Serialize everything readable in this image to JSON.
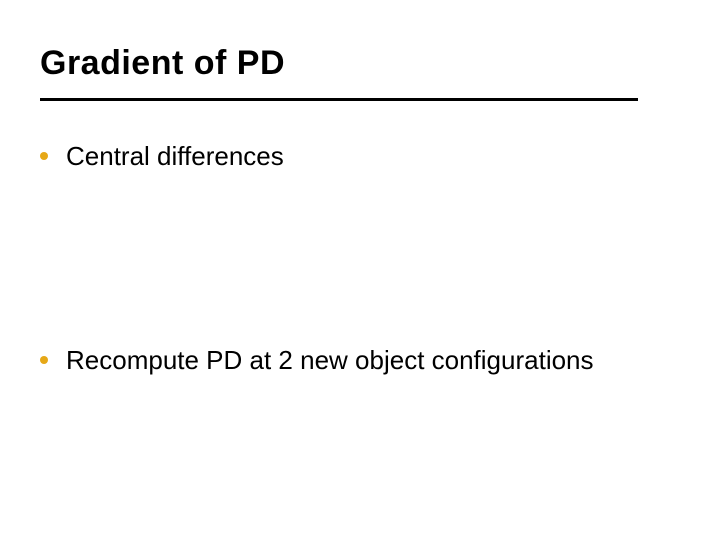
{
  "slide": {
    "title": "Gradient of PD",
    "title_color": "#000000",
    "title_fontsize": 34,
    "rule_color": "#000000",
    "rule_width": 598,
    "bullets": [
      {
        "text": "Central differences",
        "dot_color": "#e6a817"
      },
      {
        "text": "Recompute PD at 2 new object configurations",
        "dot_color": "#e6a817"
      }
    ],
    "bullet_fontsize": 26,
    "bullet_text_color": "#000000",
    "background_color": "#ffffff"
  }
}
